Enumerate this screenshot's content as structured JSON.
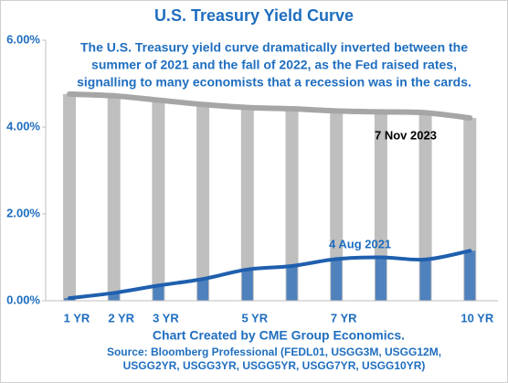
{
  "chart_data": {
    "type": "bar",
    "title": "U.S. Treasury Yield Curve",
    "annotation": [
      "The U.S. Treasury yield curve dramatically inverted between the",
      "summer of 2021 and the fall of 2022, as the Fed raised rates,",
      "signalling to many economists that a recession was in the cards."
    ],
    "credit": "Chart Created by CME Group Economics.",
    "source": [
      "Source:  Bloomberg Professional (FEDL01, USGG3M, USGG12M,",
      "USGG2YR, USGG3YR, USGG5YR, USGG7YR, USGG10YR)"
    ],
    "categories": [
      "1 YR",
      "2 YR",
      "3 YR",
      null,
      "5 YR",
      null,
      "7 YR",
      null,
      null,
      "10 YR"
    ],
    "series": [
      {
        "name": "7 Nov  2023",
        "color": "#bfbfbf",
        "line_color": "#a6a6a6",
        "values": [
          4.76,
          4.72,
          4.62,
          4.52,
          4.45,
          4.42,
          4.37,
          4.35,
          4.33,
          4.21
        ]
      },
      {
        "name": "4 Aug 2021",
        "color": "#4f81bd",
        "line_color": "#1f5fae",
        "values": [
          0.06,
          0.18,
          0.35,
          0.5,
          0.72,
          0.8,
          0.96,
          1.0,
          0.95,
          1.15
        ]
      }
    ],
    "ylim": [
      0,
      6
    ],
    "yticks": [
      {
        "value": 0,
        "label": "0.00%"
      },
      {
        "value": 2,
        "label": "2.00%"
      },
      {
        "value": 4,
        "label": "4.00%"
      },
      {
        "value": 6,
        "label": "6.00%"
      }
    ],
    "grid": false
  }
}
